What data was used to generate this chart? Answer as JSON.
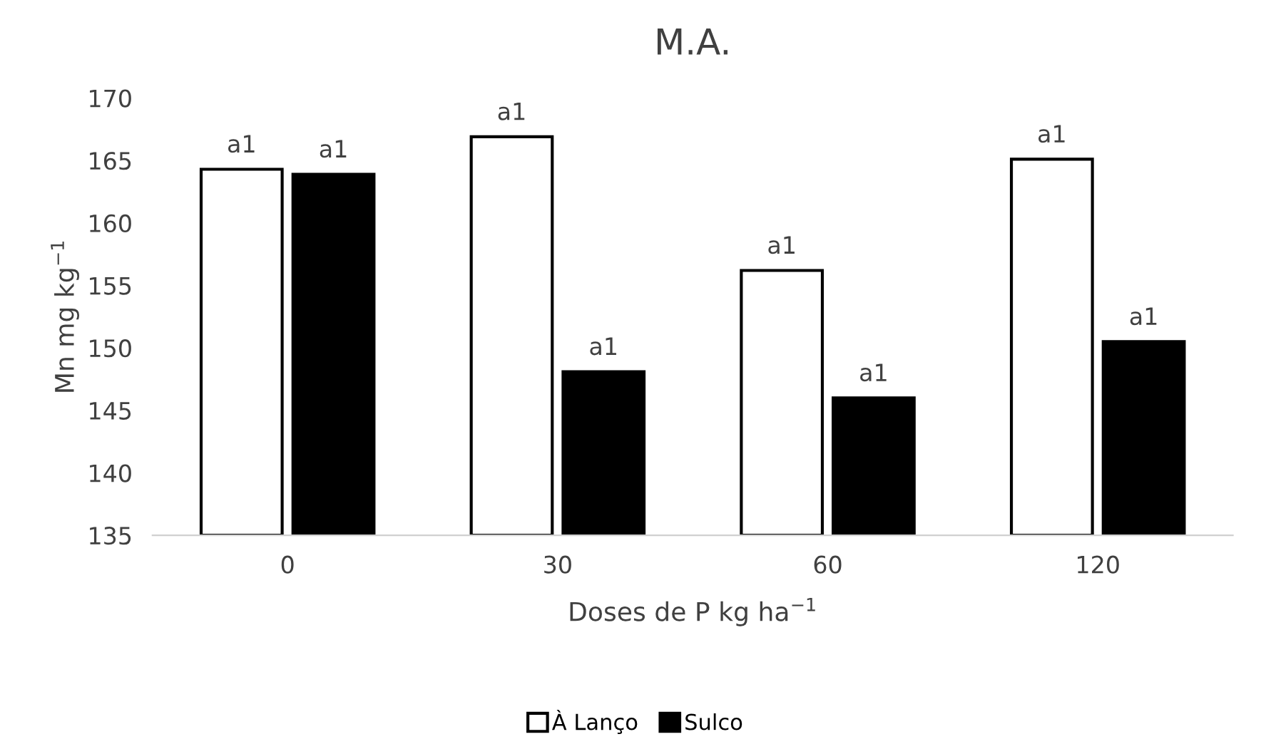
{
  "chart_data": {
    "type": "bar",
    "title": "M.A.",
    "xlabel": "Doses de P kg ha$^{−1}$",
    "ylabel": "Mn mg kg$^{−1}$",
    "categories": [
      "0",
      "30",
      "60",
      "120"
    ],
    "series": [
      {
        "name": "À Lanço",
        "color": "#ffffff",
        "values": [
          164.3,
          166.9,
          156.2,
          165.1
        ],
        "value_labels": [
          "a1",
          "a1",
          "a1",
          "a1"
        ]
      },
      {
        "name": "Sulco",
        "color": "#000000",
        "values": [
          163.9,
          148.1,
          146.0,
          150.5
        ],
        "value_labels": [
          "a1",
          "a1",
          "a1",
          "a1"
        ]
      }
    ],
    "ylim": [
      135,
      170
    ],
    "yticks": [
      135,
      140,
      145,
      150,
      155,
      160,
      165,
      170
    ],
    "grid": false,
    "legend": "bottom"
  }
}
